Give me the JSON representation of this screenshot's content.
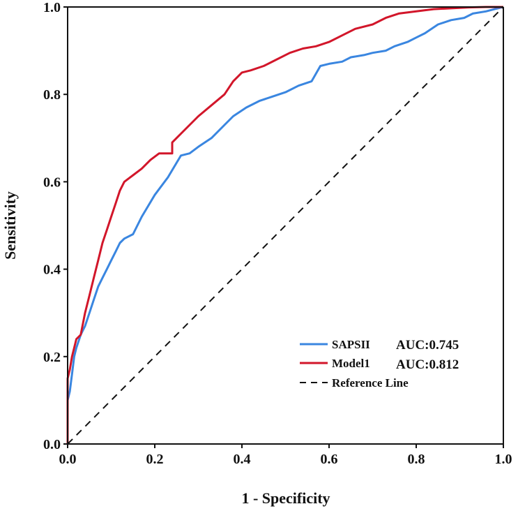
{
  "chart_data": {
    "type": "line",
    "xlabel": "1 - Specificity",
    "ylabel": "Sensitivity",
    "xlim": [
      0.0,
      1.0
    ],
    "ylim": [
      0.0,
      1.0
    ],
    "x_ticks": [
      "0.0",
      "0.2",
      "0.4",
      "0.6",
      "0.8",
      "1.0"
    ],
    "y_ticks": [
      "0.0",
      "0.2",
      "0.4",
      "0.6",
      "0.8",
      "1.0"
    ],
    "grid": false,
    "legend_position": "bottom-right",
    "series": [
      {
        "name": "SAPSII",
        "auc_label": "AUC:0.745",
        "color": "#3a86e0",
        "x": [
          0.0,
          0.0,
          0.005,
          0.01,
          0.015,
          0.02,
          0.03,
          0.04,
          0.05,
          0.06,
          0.07,
          0.08,
          0.09,
          0.1,
          0.11,
          0.12,
          0.13,
          0.15,
          0.17,
          0.2,
          0.23,
          0.26,
          0.28,
          0.3,
          0.33,
          0.36,
          0.38,
          0.41,
          0.44,
          0.47,
          0.5,
          0.53,
          0.56,
          0.58,
          0.6,
          0.63,
          0.65,
          0.68,
          0.7,
          0.73,
          0.75,
          0.78,
          0.8,
          0.82,
          0.85,
          0.88,
          0.91,
          0.93,
          0.96,
          0.98,
          1.0
        ],
        "y": [
          0.0,
          0.1,
          0.12,
          0.16,
          0.2,
          0.22,
          0.25,
          0.27,
          0.3,
          0.33,
          0.36,
          0.38,
          0.4,
          0.42,
          0.44,
          0.46,
          0.47,
          0.48,
          0.52,
          0.57,
          0.61,
          0.66,
          0.665,
          0.68,
          0.7,
          0.73,
          0.75,
          0.77,
          0.785,
          0.795,
          0.805,
          0.82,
          0.83,
          0.865,
          0.87,
          0.875,
          0.885,
          0.89,
          0.895,
          0.9,
          0.91,
          0.92,
          0.93,
          0.94,
          0.96,
          0.97,
          0.975,
          0.985,
          0.99,
          0.995,
          1.0
        ]
      },
      {
        "name": "Model1",
        "auc_label": "AUC:0.812",
        "color": "#d2162a",
        "x": [
          0.0,
          0.0,
          0.005,
          0.01,
          0.015,
          0.02,
          0.03,
          0.04,
          0.05,
          0.06,
          0.07,
          0.08,
          0.09,
          0.1,
          0.11,
          0.12,
          0.13,
          0.15,
          0.17,
          0.19,
          0.21,
          0.24,
          0.24,
          0.26,
          0.28,
          0.3,
          0.33,
          0.36,
          0.38,
          0.4,
          0.42,
          0.45,
          0.48,
          0.51,
          0.54,
          0.57,
          0.6,
          0.63,
          0.66,
          0.7,
          0.73,
          0.76,
          0.8,
          0.84,
          0.88,
          0.92,
          0.96,
          1.0
        ],
        "y": [
          0.0,
          0.15,
          0.17,
          0.2,
          0.22,
          0.24,
          0.25,
          0.3,
          0.34,
          0.38,
          0.42,
          0.46,
          0.49,
          0.52,
          0.55,
          0.58,
          0.6,
          0.615,
          0.63,
          0.65,
          0.665,
          0.665,
          0.69,
          0.71,
          0.73,
          0.75,
          0.775,
          0.8,
          0.83,
          0.85,
          0.855,
          0.865,
          0.88,
          0.895,
          0.905,
          0.91,
          0.92,
          0.935,
          0.95,
          0.96,
          0.975,
          0.985,
          0.99,
          0.995,
          0.997,
          0.999,
          1.0,
          1.0
        ]
      },
      {
        "name": "Reference Line",
        "color": "#111111",
        "dashed": true,
        "x": [
          0.0,
          1.0
        ],
        "y": [
          0.0,
          1.0
        ]
      }
    ]
  }
}
